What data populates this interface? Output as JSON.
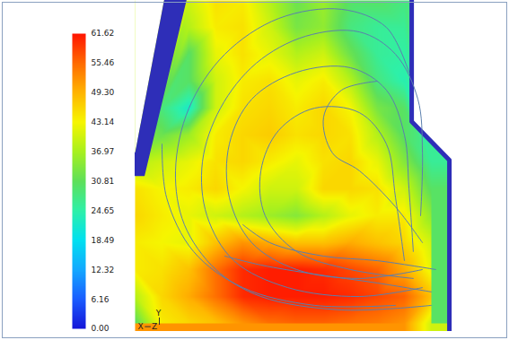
{
  "chart_data": {
    "type": "contour",
    "tick_labels": false,
    "xlim": [
      0,
      12
    ],
    "ylim": [
      -0.3,
      12
    ],
    "field": {
      "x": [
        0,
        1,
        2,
        3,
        4,
        5,
        6,
        7,
        8,
        9,
        10,
        11
      ],
      "y": [
        12,
        11,
        10,
        9,
        8,
        7,
        6,
        5,
        4,
        3,
        2,
        1,
        0
      ],
      "values": [
        [
          null,
          null,
          40,
          45,
          44,
          38,
          32,
          36,
          30,
          30,
          28,
          null
        ],
        [
          null,
          null,
          38,
          44,
          45,
          40,
          33,
          35,
          28,
          26,
          26,
          null
        ],
        [
          null,
          null,
          30,
          42,
          45,
          42,
          38,
          40,
          32,
          26,
          25,
          null
        ],
        [
          null,
          null,
          30,
          40,
          44,
          45,
          42,
          44,
          38,
          28,
          24,
          null
        ],
        [
          null,
          28,
          22,
          40,
          45,
          46,
          44,
          46,
          43,
          33,
          30,
          null
        ],
        [
          null,
          32,
          36,
          44,
          46,
          47,
          45,
          46,
          45,
          38,
          30,
          null
        ],
        [
          38,
          40,
          42,
          45,
          46,
          44,
          42,
          45,
          46,
          42,
          34,
          26
        ],
        [
          45,
          43,
          44,
          46,
          43,
          40,
          40,
          46,
          46,
          45,
          40,
          30
        ],
        [
          46,
          44,
          42,
          40,
          38,
          36,
          34,
          38,
          42,
          44,
          44,
          35
        ],
        [
          44,
          43,
          42,
          48,
          52,
          50,
          48,
          48,
          50,
          48,
          46,
          40
        ],
        [
          44,
          45,
          48,
          55,
          60,
          61,
          61,
          60,
          58,
          56,
          50,
          42
        ],
        [
          38,
          46,
          50,
          55,
          60,
          61,
          61,
          61,
          60,
          58,
          56,
          48
        ],
        [
          30,
          44,
          46,
          48,
          52,
          55,
          56,
          56,
          55,
          54,
          52,
          40
        ]
      ]
    },
    "colorbar": {
      "range": [
        0,
        61.62
      ],
      "ticks": [
        {
          "value": 0,
          "label": "0.00"
        },
        6.16,
        12.32,
        18.49,
        24.65,
        30.81,
        36.97,
        43.14,
        {
          "value": 49.3,
          "label": "49.30"
        },
        55.46,
        61.62
      ]
    },
    "streamlines": [
      [
        [
          10.67,
          1.33
        ],
        [
          8.33,
          1.0
        ],
        [
          5.67,
          1.33
        ],
        [
          3.67,
          2.33
        ],
        [
          2.67,
          4.0
        ],
        [
          2.5,
          6.0
        ],
        [
          3.17,
          8.0
        ],
        [
          4.5,
          9.67
        ],
        [
          6.33,
          10.67
        ],
        [
          8.33,
          10.83
        ],
        [
          9.67,
          10.0
        ],
        [
          10.5,
          8.33
        ],
        [
          10.67,
          6.33
        ],
        [
          10.6,
          4.0
        ]
      ],
      [
        [
          10.67,
          2.0
        ],
        [
          8.33,
          1.67
        ],
        [
          6.0,
          2.0
        ],
        [
          4.33,
          3.0
        ],
        [
          3.5,
          4.67
        ],
        [
          3.5,
          6.67
        ],
        [
          4.33,
          8.33
        ],
        [
          6.0,
          9.33
        ],
        [
          8.0,
          9.5
        ],
        [
          9.33,
          8.67
        ],
        [
          10.0,
          7.0
        ],
        [
          10.17,
          5.0
        ],
        [
          10.33,
          2.67
        ]
      ],
      [
        [
          10.33,
          1.67
        ],
        [
          8.0,
          2.0
        ],
        [
          6.0,
          2.67
        ],
        [
          4.83,
          4.0
        ],
        [
          4.67,
          5.67
        ],
        [
          5.33,
          7.17
        ],
        [
          6.67,
          8.0
        ],
        [
          8.33,
          7.83
        ],
        [
          9.33,
          6.67
        ],
        [
          9.67,
          4.67
        ],
        [
          10.0,
          2.33
        ]
      ],
      [
        [
          11.0,
          0.67
        ],
        [
          7.67,
          0.5
        ],
        [
          4.67,
          1.0
        ],
        [
          3.0,
          2.0
        ],
        [
          1.83,
          3.67
        ],
        [
          1.5,
          5.67
        ],
        [
          2.0,
          8.0
        ],
        [
          3.33,
          10.0
        ],
        [
          5.33,
          11.33
        ],
        [
          7.67,
          11.67
        ],
        [
          9.33,
          11.0
        ],
        [
          10.17,
          9.33
        ]
      ],
      [
        [
          11.0,
          1.17
        ],
        [
          9.0,
          1.5
        ],
        [
          6.67,
          1.83
        ],
        [
          4.67,
          2.17
        ],
        [
          3.33,
          2.5
        ]
      ],
      [
        [
          11.17,
          2.0
        ],
        [
          9.0,
          2.33
        ],
        [
          7.0,
          2.5
        ],
        [
          5.0,
          3.0
        ],
        [
          4.0,
          3.67
        ]
      ],
      [
        [
          10.67,
          3.0
        ],
        [
          9.67,
          4.33
        ],
        [
          8.33,
          5.67
        ],
        [
          7.33,
          6.33
        ],
        [
          7.0,
          7.67
        ],
        [
          7.67,
          8.67
        ],
        [
          9.0,
          9.0
        ]
      ],
      [
        [
          9.67,
          0.67
        ],
        [
          6.67,
          0.67
        ],
        [
          4.0,
          1.33
        ],
        [
          2.17,
          2.67
        ],
        [
          1.17,
          4.67
        ],
        [
          1.0,
          6.67
        ]
      ]
    ],
    "annotations": [
      "Y",
      "X",
      "Z"
    ]
  }
}
